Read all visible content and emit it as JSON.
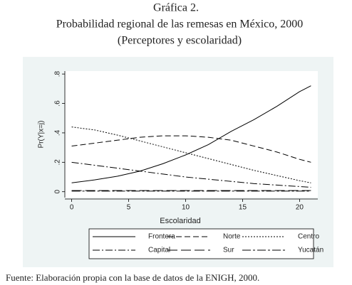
{
  "chart_data": {
    "type": "line",
    "title": "Gráfica 2.",
    "subtitle": [
      "Probabilidad regional de las remesas en México, 2000",
      "(Perceptores y escolaridad)"
    ],
    "source": "Fuente: Elaboración propia con la base de datos de la ENIGH, 2000.",
    "xlabel": "Escolaridad",
    "ylabel": "Pr(Y|x=j)",
    "x": [
      0,
      2,
      4,
      6,
      8,
      10,
      12,
      14,
      16,
      18,
      20,
      21
    ],
    "series": [
      {
        "name": "Frontera",
        "color": "#000000",
        "values": [
          0.06,
          0.08,
          0.105,
          0.14,
          0.19,
          0.25,
          0.32,
          0.41,
          0.49,
          0.58,
          0.68,
          0.72
        ]
      },
      {
        "name": "Norte",
        "color": "#000000",
        "values": [
          0.31,
          0.33,
          0.35,
          0.37,
          0.38,
          0.38,
          0.37,
          0.35,
          0.31,
          0.27,
          0.22,
          0.2
        ]
      },
      {
        "name": "Centro",
        "color": "#000000",
        "values": [
          0.44,
          0.42,
          0.385,
          0.345,
          0.305,
          0.265,
          0.225,
          0.185,
          0.145,
          0.11,
          0.075,
          0.06
        ]
      },
      {
        "name": "Capital",
        "color": "#000000",
        "values": [
          0.2,
          0.18,
          0.16,
          0.14,
          0.12,
          0.1,
          0.085,
          0.07,
          0.055,
          0.045,
          0.035,
          0.03
        ]
      },
      {
        "name": "Sur",
        "color": "#000000",
        "values": [
          0.008,
          0.008,
          0.008,
          0.008,
          0.008,
          0.008,
          0.008,
          0.008,
          0.008,
          0.008,
          0.008,
          0.008
        ]
      },
      {
        "name": "Yucatán",
        "color": "#000000",
        "values": [
          0.004,
          0.004,
          0.004,
          0.004,
          0.004,
          0.004,
          0.004,
          0.004,
          0.004,
          0.004,
          0.004,
          0.004
        ]
      }
    ],
    "xlim": [
      -0.6,
      21.6
    ],
    "ylim": [
      -0.04,
      0.82
    ],
    "xticks": [
      0,
      5,
      10,
      15,
      20
    ],
    "yticks": [
      0,
      {
        "value": 0.2,
        "label": ".2"
      },
      {
        "value": 0.4,
        "label": ".4"
      },
      {
        "value": 0.6,
        "label": ".6"
      },
      {
        "value": 0.8,
        "label": ".8"
      }
    ]
  }
}
